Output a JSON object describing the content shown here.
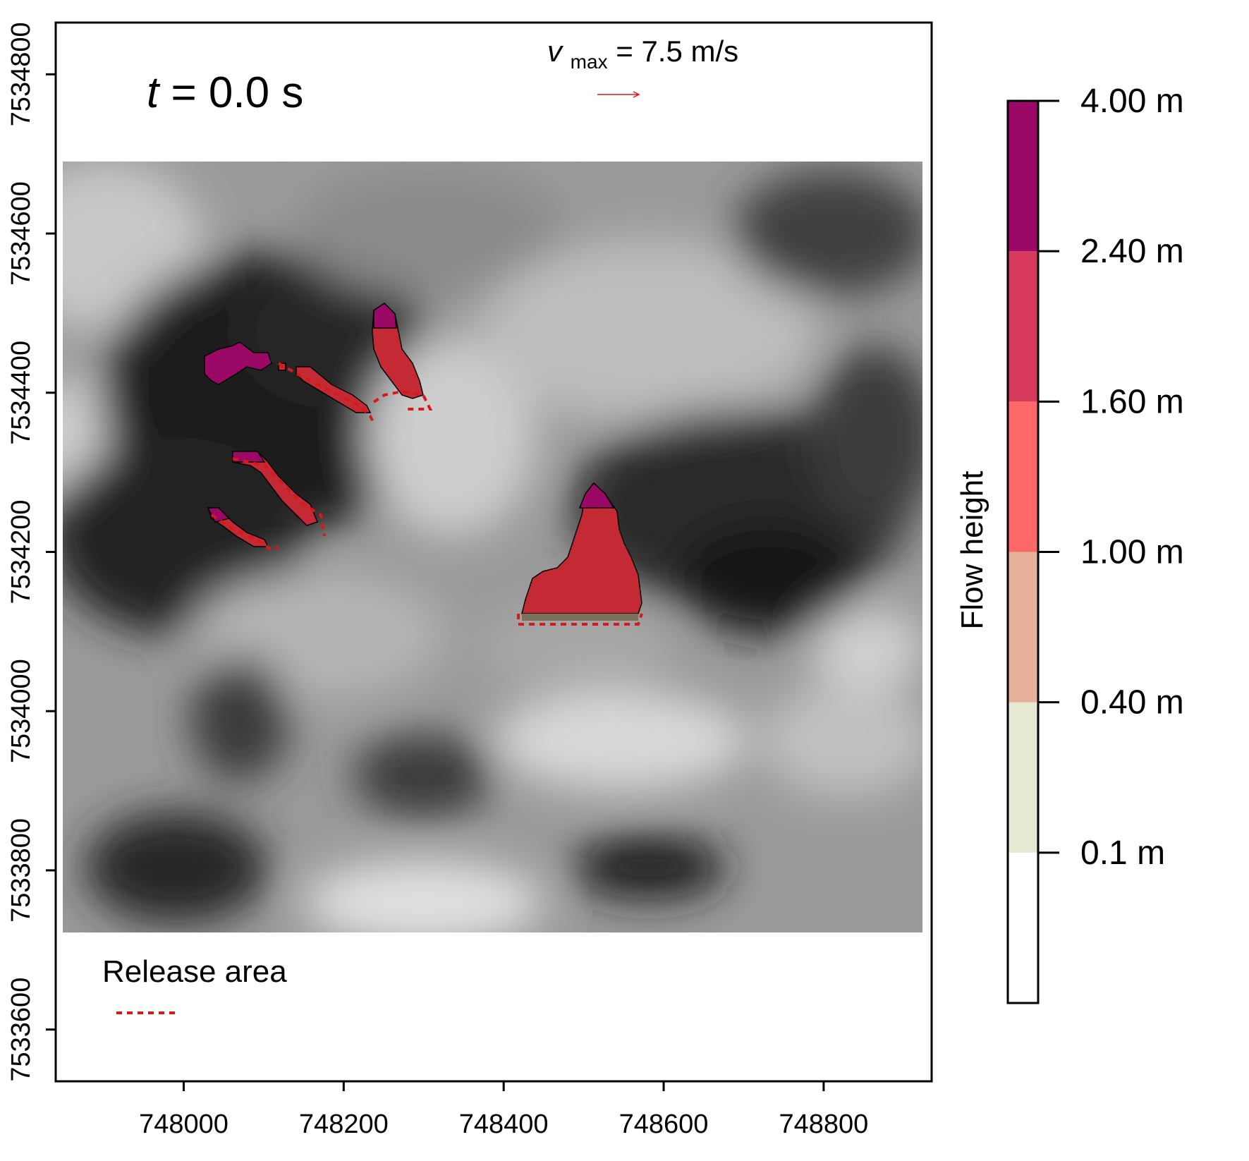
{
  "chart_data": {
    "type": "heatmap",
    "time_label": {
      "var": "t",
      "value": "0.0",
      "unit": "s"
    },
    "velocity_label": {
      "var": "v",
      "sub": "max",
      "value": "7.5",
      "unit": "m/s"
    },
    "legend": {
      "label": "Release area",
      "line_style": "dotted",
      "color": "#d7191c"
    },
    "x_axis": {
      "ticks": [
        748000,
        748200,
        748400,
        748600,
        748800
      ],
      "tick_labels": [
        "748000",
        "748200",
        "748400",
        "748600",
        "748800"
      ],
      "range": [
        747840,
        748935
      ]
    },
    "y_axis": {
      "ticks": [
        7533600,
        7533800,
        7534000,
        7534200,
        7534400,
        7534600,
        7534800
      ],
      "tick_labels": [
        "7533600",
        "7533800",
        "7534000",
        "7534200",
        "7534400",
        "7534600",
        "7534800"
      ],
      "range": [
        7533535,
        7534865
      ]
    },
    "colorbar": {
      "title": "Flow height",
      "breaks": [
        0.1,
        0.4,
        1.0,
        1.6,
        2.4,
        4.0
      ],
      "tick_labels": [
        "0.1 m",
        "0.40 m",
        "1.00 m",
        "1.60 m",
        "2.40 m",
        "4.00 m"
      ],
      "colors": [
        "#ffffff",
        "#e6e8d2",
        "#e7b09b",
        "#ff6868",
        "#d6395c",
        "#9c0866"
      ]
    },
    "flow_colors": {
      "low": "#7a725c",
      "mid": "#c42a34",
      "high": "#9c0866",
      "release": "#d7191c"
    }
  }
}
